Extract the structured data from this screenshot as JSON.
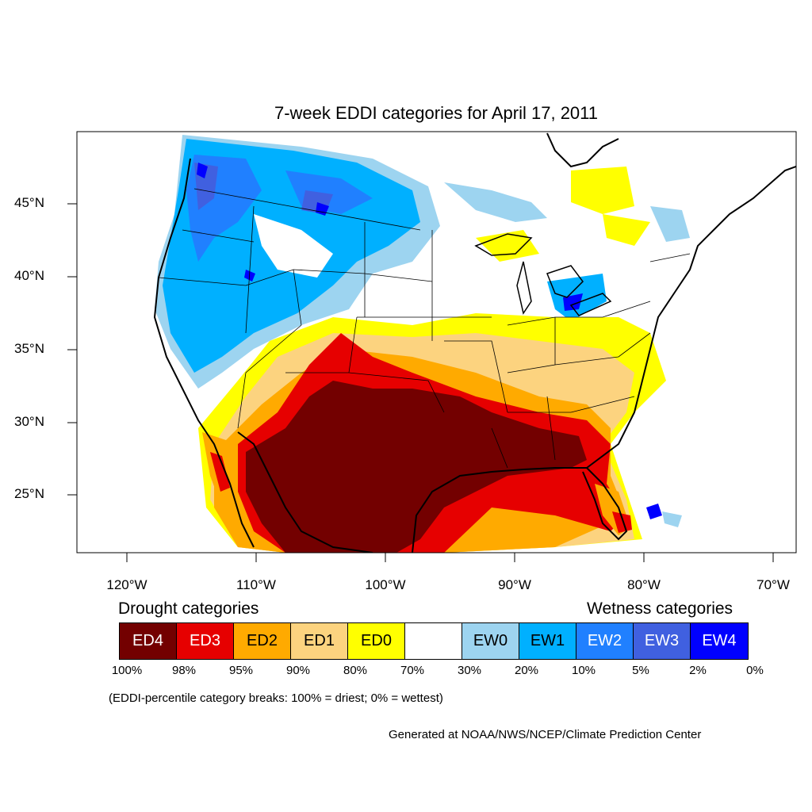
{
  "title": "7-week EDDI categories for April 17, 2011",
  "lat_labels": [
    "45°N",
    "40°N",
    "35°N",
    "30°N",
    "25°N"
  ],
  "lon_labels": [
    "120°W",
    "110°W",
    "100°W",
    "90°W",
    "80°W",
    "70°W"
  ],
  "legend": {
    "drought_heading": "Drought categories",
    "wetness_heading": "Wetness categories",
    "categories": [
      {
        "label": "ED4",
        "color": "#730000"
      },
      {
        "label": "ED3",
        "color": "#e60000"
      },
      {
        "label": "ED2",
        "color": "#ffaa00"
      },
      {
        "label": "ED1",
        "color": "#fcd37f"
      },
      {
        "label": "ED0",
        "color": "#ffff00"
      },
      {
        "label": "",
        "color": "#ffffff"
      },
      {
        "label": "EW0",
        "color": "#9dd4f0"
      },
      {
        "label": "EW1",
        "color": "#00b0ff"
      },
      {
        "label": "EW2",
        "color": "#2080ff"
      },
      {
        "label": "EW3",
        "color": "#4060e0"
      },
      {
        "label": "EW4",
        "color": "#0000ff"
      }
    ],
    "percent_breaks": [
      "100%",
      "98%",
      "95%",
      "90%",
      "80%",
      "70%",
      "30%",
      "20%",
      "10%",
      "5%",
      "2%",
      "0%"
    ]
  },
  "note": "(EDDI-percentile category breaks: 100% = driest; 0% = wettest)",
  "credit": "Generated at NOAA/NWS/NCEP/Climate Prediction Center"
}
